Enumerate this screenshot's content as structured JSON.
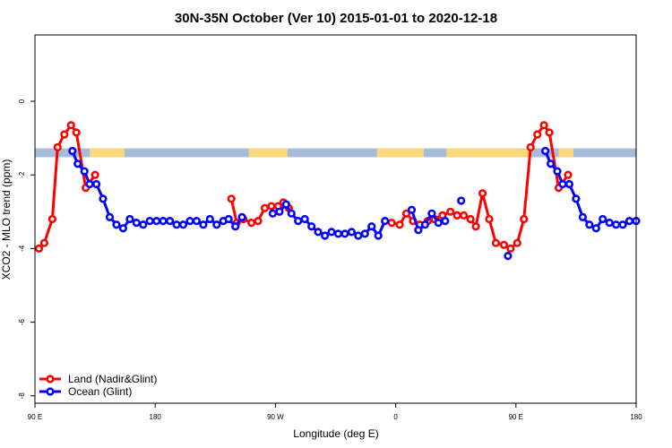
{
  "chart_data": {
    "type": "line",
    "title": "30N-35N October (Ver 10)   2015-01-01 to 2020-12-18",
    "xlabel": "Longitude (deg E)",
    "ylabel": "XCO2 - MLO trend (ppm)",
    "xlim": [
      90,
      540
    ],
    "ylim": [
      -8.2,
      1.8
    ],
    "x_ticks": [
      {
        "value": 90,
        "label": "90 E"
      },
      {
        "value": 180,
        "label": "180"
      },
      {
        "value": 270,
        "label": "90 W"
      },
      {
        "value": 360,
        "label": "0"
      },
      {
        "value": 450,
        "label": "90 E"
      },
      {
        "value": 540,
        "label": "180"
      }
    ],
    "y_ticks": [
      {
        "value": 0,
        "label": "0"
      },
      {
        "value": -2,
        "label": "-2"
      },
      {
        "value": -4,
        "label": "-4"
      },
      {
        "value": -6,
        "label": "-6"
      },
      {
        "value": -8,
        "label": "-8"
      }
    ],
    "land_sea_band": {
      "y_range": [
        -1.52,
        -1.28
      ],
      "ocean_color": "#a7bcd9",
      "land_color": "#f9d77a",
      "land_segments": [
        [
          131,
          157
        ],
        [
          250,
          279
        ],
        [
          346,
          381
        ],
        [
          398,
          462
        ],
        [
          482,
          493
        ]
      ]
    },
    "series": [
      {
        "name": "Land (Nadir&Glint)",
        "color": "#ff0000",
        "points": [
          [
            93,
            -4.0
          ],
          [
            97,
            -3.85
          ],
          [
            103,
            -3.2
          ],
          [
            107,
            -1.25
          ],
          [
            112,
            -0.9
          ],
          [
            117,
            -0.65
          ],
          [
            121,
            -0.85
          ],
          [
            128,
            -2.35
          ],
          [
            135,
            -2.0
          ],
          null,
          [
            237,
            -2.65
          ],
          [
            241,
            -3.3
          ],
          [
            246,
            -3.2
          ],
          [
            252,
            -3.3
          ],
          [
            257,
            -3.25
          ],
          [
            262,
            -2.9
          ],
          [
            267,
            -2.85
          ],
          [
            272,
            -2.85
          ],
          [
            276,
            -2.75
          ],
          [
            280,
            -2.9
          ],
          null,
          [
            357,
            -3.3
          ],
          [
            363,
            -3.35
          ],
          [
            368,
            -3.05
          ],
          [
            373,
            -3.25
          ],
          [
            378,
            -3.35
          ],
          [
            384,
            -3.25
          ],
          [
            389,
            -3.2
          ],
          [
            395,
            -3.1
          ],
          [
            401,
            -3.0
          ],
          [
            406,
            -3.1
          ],
          [
            411,
            -3.1
          ],
          [
            416,
            -3.2
          ],
          [
            420,
            -3.4
          ],
          [
            425,
            -2.5
          ],
          [
            430,
            -3.2
          ],
          [
            435,
            -3.85
          ],
          [
            441,
            -3.9
          ],
          [
            446,
            -4.0
          ],
          [
            451,
            -3.85
          ],
          [
            456,
            -3.2
          ],
          [
            461,
            -1.25
          ],
          [
            466,
            -0.9
          ],
          [
            471,
            -0.65
          ],
          [
            475,
            -0.85
          ],
          [
            482,
            -2.35
          ],
          [
            489,
            -2.0
          ]
        ]
      },
      {
        "name": "Ocean (Glint)",
        "color": "#0000ff",
        "points": [
          [
            118,
            -1.35
          ],
          [
            122,
            -1.7
          ],
          [
            127,
            -1.9
          ],
          [
            131,
            -2.25
          ],
          [
            136,
            -2.25
          ],
          [
            141,
            -2.65
          ],
          [
            146,
            -3.15
          ],
          [
            151,
            -3.35
          ],
          [
            156,
            -3.45
          ],
          [
            161,
            -3.2
          ],
          [
            166,
            -3.3
          ],
          [
            171,
            -3.35
          ],
          [
            176,
            -3.25
          ],
          [
            181,
            -3.25
          ],
          [
            186,
            -3.25
          ],
          [
            191,
            -3.25
          ],
          [
            196,
            -3.35
          ],
          [
            201,
            -3.35
          ],
          [
            206,
            -3.25
          ],
          [
            211,
            -3.25
          ],
          [
            216,
            -3.35
          ],
          [
            221,
            -3.2
          ],
          [
            226,
            -3.35
          ],
          [
            231,
            -3.25
          ],
          [
            235,
            -3.2
          ],
          [
            240,
            -3.4
          ],
          [
            245,
            -3.15
          ],
          null,
          [
            268,
            -3.05
          ],
          [
            273,
            -3.0
          ],
          [
            278,
            -2.8
          ],
          [
            282,
            -3.05
          ],
          [
            287,
            -3.25
          ],
          [
            292,
            -3.2
          ],
          [
            297,
            -3.4
          ],
          [
            302,
            -3.55
          ],
          [
            307,
            -3.65
          ],
          [
            312,
            -3.55
          ],
          [
            317,
            -3.6
          ],
          [
            322,
            -3.6
          ],
          [
            327,
            -3.55
          ],
          [
            332,
            -3.65
          ],
          [
            337,
            -3.6
          ],
          [
            342,
            -3.4
          ],
          [
            347,
            -3.65
          ],
          [
            352,
            -3.25
          ],
          null,
          [
            372,
            -2.95
          ],
          [
            377,
            -3.5
          ],
          [
            382,
            -3.35
          ],
          [
            387,
            -3.05
          ],
          [
            392,
            -3.3
          ],
          [
            397,
            -3.25
          ],
          null,
          [
            409,
            -2.7
          ],
          null,
          [
            444,
            -4.2
          ],
          null,
          [
            472,
            -1.35
          ],
          [
            476,
            -1.7
          ],
          [
            481,
            -1.9
          ],
          [
            485,
            -2.25
          ],
          [
            490,
            -2.25
          ],
          [
            495,
            -2.65
          ],
          [
            500,
            -3.15
          ],
          [
            505,
            -3.35
          ],
          [
            510,
            -3.45
          ],
          [
            515,
            -3.2
          ],
          [
            520,
            -3.3
          ],
          [
            525,
            -3.35
          ],
          [
            530,
            -3.35
          ],
          [
            535,
            -3.25
          ],
          [
            540,
            -3.25
          ]
        ]
      }
    ],
    "legend": {
      "position": "bottom-left"
    },
    "grid": false
  }
}
